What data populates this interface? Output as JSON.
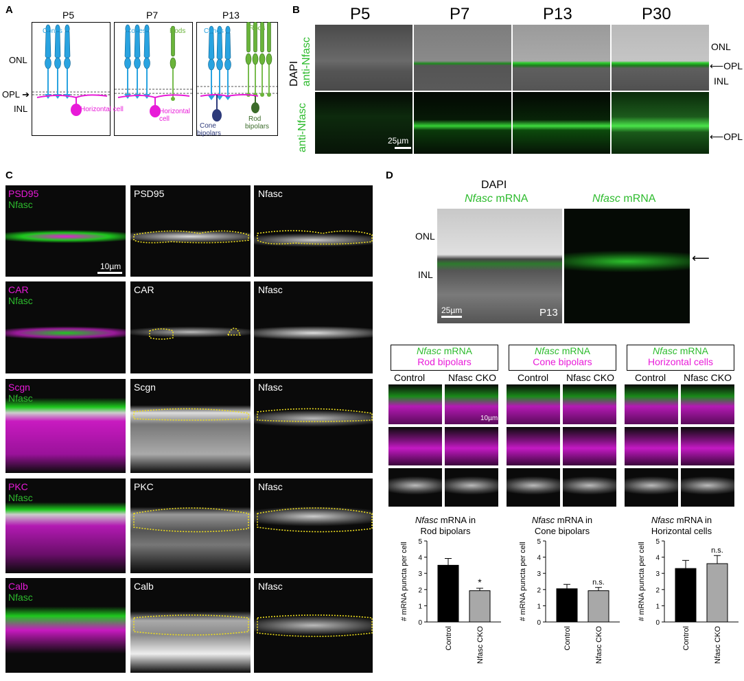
{
  "panel_a": {
    "letter": "A",
    "ages": [
      "P5",
      "P7",
      "P13"
    ],
    "layers": {
      "onl": "ONL",
      "opl": "OPL",
      "inl": "INL"
    },
    "cones": "Cones",
    "rods": "Rods",
    "horizontal": "Horizontal",
    "cell": "cell",
    "horizontal_cell": "Horizontal cell",
    "cone_bipolars_1": "Cone",
    "cone_bipolars_2": "bipolars",
    "rod_bipolars_1": "Rod",
    "rod_bipolars_2": "bipolars",
    "colors": {
      "cone": "#29a3e0",
      "rod": "#6ab43a",
      "horizontal": "#e81ad8",
      "cone_bipolar": "#2d3a7a",
      "rod_bipolar": "#3b6b2a"
    }
  },
  "panel_b": {
    "letter": "B",
    "ages": [
      "P5",
      "P7",
      "P13",
      "P30"
    ],
    "row1_label_1": "DAPI",
    "row1_label_2": "anti-Nfasc",
    "row2_label": "anti-Nfasc",
    "onl": "ONL",
    "opl": "OPL",
    "inl": "INL",
    "opl2": "OPL",
    "scale": "25µm"
  },
  "panel_c": {
    "letter": "C",
    "rows": [
      {
        "merge_top": "PSD95",
        "merge_bottom": "Nfasc",
        "single": "PSD95",
        "nfasc": "Nfasc",
        "scale": "10µm"
      },
      {
        "merge_top": "CAR",
        "merge_bottom": "Nfasc",
        "single": "CAR",
        "nfasc": "Nfasc"
      },
      {
        "merge_top": "Scgn",
        "merge_bottom": "Nfasc",
        "single": "Scgn",
        "nfasc": "Nfasc"
      },
      {
        "merge_top": "PKC",
        "merge_bottom": "Nfasc",
        "single": "PKC",
        "nfasc": "Nfasc"
      },
      {
        "merge_top": "Calb",
        "merge_bottom": "Nfasc",
        "single": "Calb",
        "nfasc": "Nfasc"
      }
    ]
  },
  "panel_d": {
    "letter": "D",
    "dapi": "DAPI",
    "nfasc_italic": "Nfasc",
    "mrna": "mRNA",
    "onl": "ONL",
    "inl": "INL",
    "scale": "25µm",
    "age": "P13",
    "scale_small": "10µm",
    "groups": [
      {
        "line2": "Rod bipolars",
        "control": "Control",
        "cko": "Nfasc CKO"
      },
      {
        "line2": "Cone bipolars",
        "control": "Control",
        "cko": "Nfasc CKO"
      },
      {
        "line2": "Horizontal cells",
        "control": "Control",
        "cko": "Nfasc CKO"
      }
    ]
  },
  "chart_data": [
    {
      "type": "bar",
      "title_italic": "Nfasc",
      "title_rest": " mRNA in",
      "title_line2": "Rod bipolars",
      "categories": [
        "Control",
        "Nfasc CKO"
      ],
      "values": [
        3.5,
        1.93
      ],
      "errors": [
        0.42,
        0.15
      ],
      "colors": [
        "#000000",
        "#a8a8a8"
      ],
      "ylabel": "# mRNA puncta per cell",
      "ylim": [
        0,
        5
      ],
      "yticks": [
        "0",
        "1",
        "2",
        "3",
        "4",
        "5"
      ],
      "annotation": "*"
    },
    {
      "type": "bar",
      "title_italic": "Nfasc",
      "title_rest": " mRNA in",
      "title_line2": "Cone bipolars",
      "categories": [
        "Control",
        "Nfasc CKO"
      ],
      "values": [
        2.05,
        1.93
      ],
      "errors": [
        0.27,
        0.2
      ],
      "colors": [
        "#000000",
        "#a8a8a8"
      ],
      "ylabel": "# mRNA puncta per cell",
      "ylim": [
        0,
        5
      ],
      "yticks": [
        "0",
        "1",
        "2",
        "3",
        "4",
        "5"
      ],
      "annotation": "n.s."
    },
    {
      "type": "bar",
      "title_italic": "Nfasc",
      "title_rest": " mRNA in",
      "title_line2": "Horizontal cells",
      "categories": [
        "Control",
        "Nfasc CKO"
      ],
      "values": [
        3.3,
        3.6
      ],
      "errors": [
        0.5,
        0.5
      ],
      "colors": [
        "#000000",
        "#a8a8a8"
      ],
      "ylabel": "# mRNA puncta per cell",
      "ylim": [
        0,
        5
      ],
      "yticks": [
        "0",
        "1",
        "2",
        "3",
        "4",
        "5"
      ],
      "annotation": "n.s."
    }
  ]
}
